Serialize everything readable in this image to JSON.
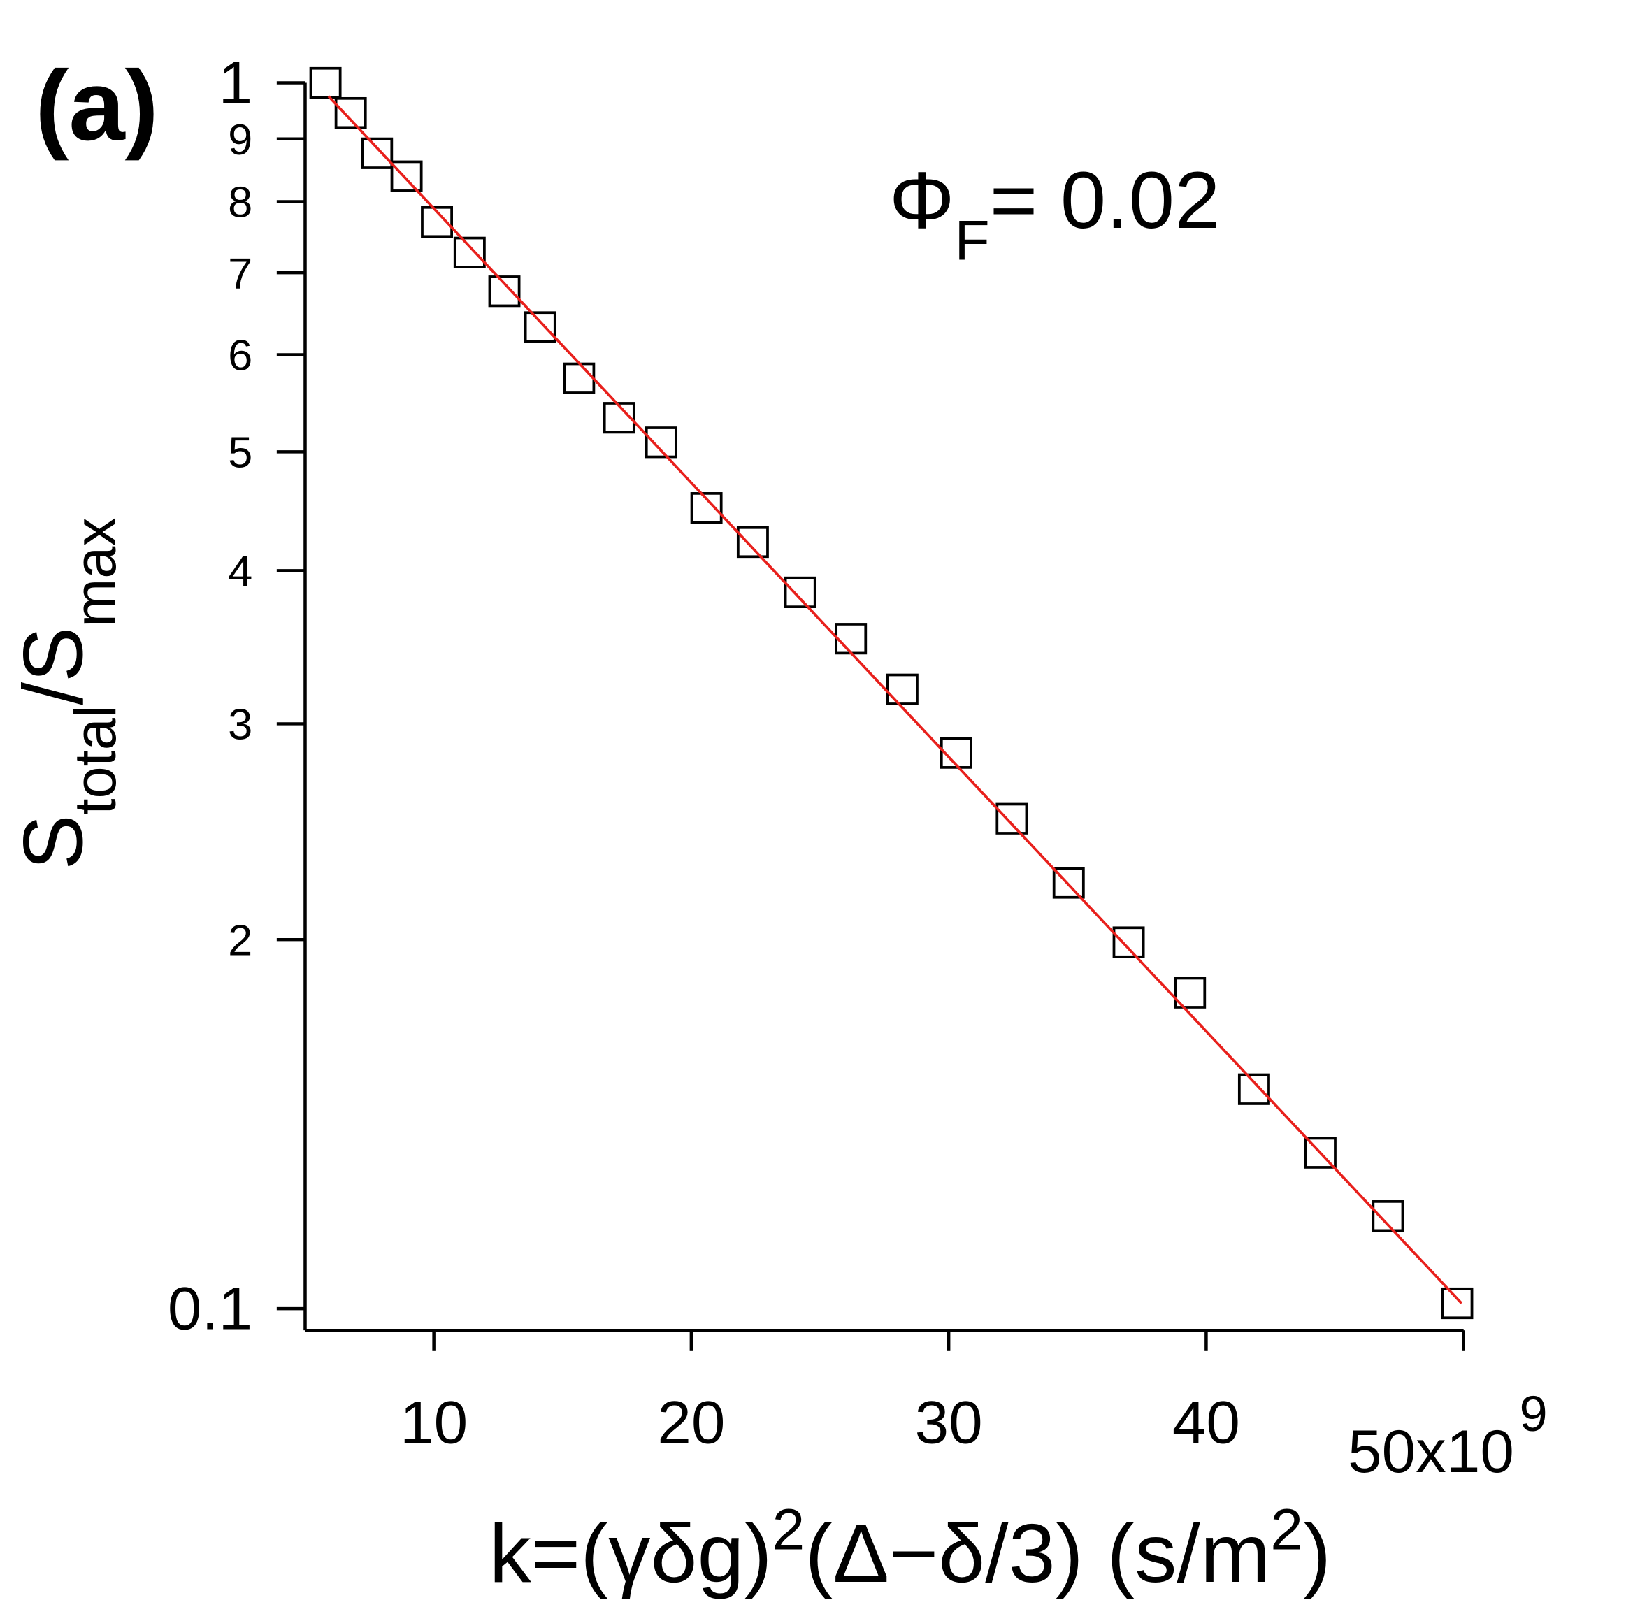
{
  "chart_data": {
    "type": "scatter",
    "panel_label": "(a)",
    "annotation": [
      {
        "text": "Φ"
      },
      {
        "text": "F",
        "shift": "sub"
      },
      {
        "text": "= 0.02"
      }
    ],
    "x_label": [
      {
        "text": "k=(γδg)"
      },
      {
        "text": "2",
        "shift": "super"
      },
      {
        "text": "(Δ−δ/3) (s/m"
      },
      {
        "text": "2",
        "shift": "super"
      },
      {
        "text": ")"
      }
    ],
    "y_label": [
      {
        "text": "S"
      },
      {
        "text": "total",
        "shift": "sub"
      },
      {
        "text": "/S"
      },
      {
        "text": "max",
        "shift": "sub"
      }
    ],
    "xlim": [
      5,
      50
    ],
    "ylim": [
      0.096,
      1
    ],
    "y_log": true,
    "xticks": [
      10,
      20,
      30,
      40,
      {
        "value": 50,
        "label": "50x10"
      }
    ],
    "x_exponent": "9",
    "yticks": [
      1,
      {
        "value": 0.9,
        "label": "9"
      },
      {
        "value": 0.8,
        "label": "8"
      },
      {
        "value": 0.7,
        "label": "7"
      },
      {
        "value": 0.6,
        "label": "6"
      },
      {
        "value": 0.5,
        "label": "5"
      },
      {
        "value": 0.4,
        "label": "4"
      },
      {
        "value": 0.3,
        "label": "3"
      },
      {
        "value": 0.2,
        "label": "2"
      },
      0.1
    ],
    "series": [
      {
        "kind": "markers",
        "color": "#000000",
        "x": [
          5.79,
          6.77,
          7.79,
          8.94,
          10.12,
          11.39,
          12.74,
          14.13,
          15.64,
          17.2,
          18.83,
          20.59,
          22.39,
          24.23,
          26.2,
          28.2,
          30.29,
          32.45,
          34.66,
          36.99,
          39.37,
          41.86,
          44.44,
          47.06,
          49.75
        ],
        "values": [
          1.0,
          0.945,
          0.876,
          0.839,
          0.77,
          0.727,
          0.676,
          0.632,
          0.574,
          0.533,
          0.509,
          0.45,
          0.422,
          0.384,
          0.352,
          0.32,
          0.284,
          0.251,
          0.2225,
          0.199,
          0.181,
          0.151,
          0.134,
          0.119,
          0.101
        ]
      },
      {
        "kind": "line",
        "color": "#e8201c",
        "x": [
          5.91,
          49.92
        ],
        "values": [
          0.975,
          0.101
        ]
      }
    ]
  }
}
